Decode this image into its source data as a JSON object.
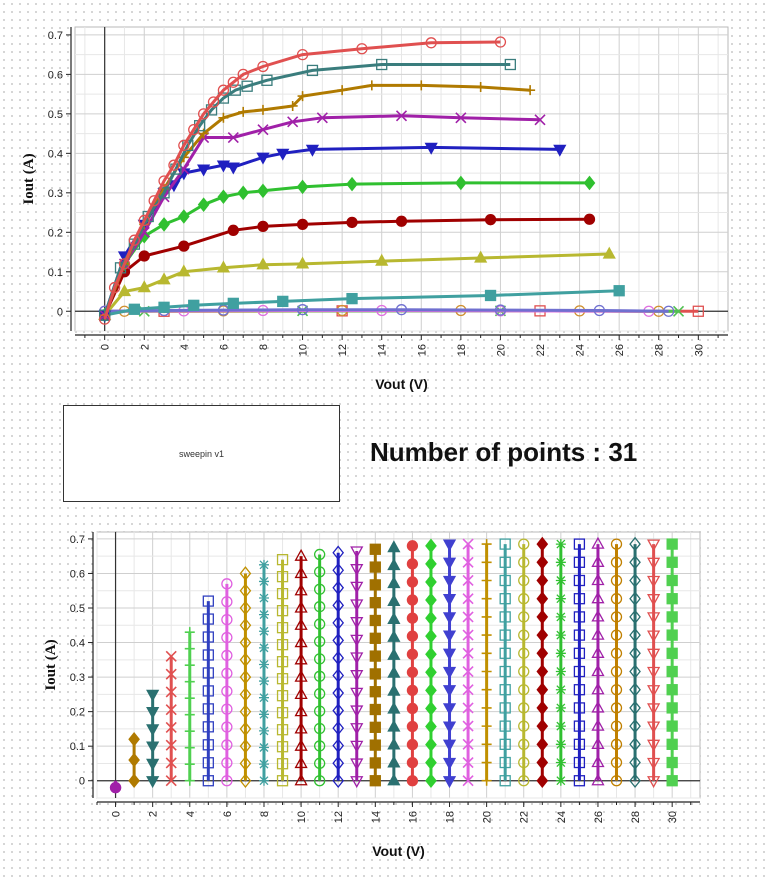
{
  "sweep_box": {
    "label": "sweepin v1"
  },
  "points_readout": "Number of points : 31",
  "chart_data": [
    {
      "type": "line",
      "xlabel": "Vout (V)",
      "ylabel": "Iout (A)",
      "xlim": [
        -1.5,
        31.5
      ],
      "ylim": [
        -0.05,
        0.72
      ],
      "xticks": [
        "0",
        "2",
        "4",
        "6",
        "8",
        "10",
        "12",
        "14",
        "16",
        "18",
        "20",
        "22",
        "24",
        "26",
        "28",
        "30"
      ],
      "yticks": [
        "0",
        "0.1",
        "0.2",
        "0.3",
        "0.4",
        "0.5",
        "0.6",
        "0.7"
      ],
      "grid": true,
      "series": [
        {
          "color": "#e05050",
          "marker": "circle-open",
          "points": [
            [
              0,
              -0.02
            ],
            [
              0.5,
              0.06
            ],
            [
              1,
              0.12
            ],
            [
              1.5,
              0.18
            ],
            [
              2,
              0.23
            ],
            [
              2.5,
              0.28
            ],
            [
              3,
              0.33
            ],
            [
              3.5,
              0.37
            ],
            [
              4,
              0.42
            ],
            [
              4.5,
              0.46
            ],
            [
              5,
              0.5
            ],
            [
              5.5,
              0.53
            ],
            [
              6,
              0.56
            ],
            [
              6.5,
              0.58
            ],
            [
              7,
              0.6
            ],
            [
              8,
              0.62
            ],
            [
              10,
              0.65
            ],
            [
              13,
              0.665
            ],
            [
              16.5,
              0.68
            ],
            [
              20,
              0.682
            ]
          ]
        },
        {
          "color": "#3a7d7d",
          "marker": "square-open",
          "points": [
            [
              0,
              -0.01
            ],
            [
              0.8,
              0.11
            ],
            [
              1.5,
              0.17
            ],
            [
              2.2,
              0.24
            ],
            [
              3,
              0.3
            ],
            [
              3.6,
              0.36
            ],
            [
              4.2,
              0.42
            ],
            [
              4.8,
              0.47
            ],
            [
              5.4,
              0.51
            ],
            [
              6,
              0.54
            ],
            [
              6.6,
              0.56
            ],
            [
              7.2,
              0.57
            ],
            [
              8.2,
              0.585
            ],
            [
              10.5,
              0.61
            ],
            [
              14,
              0.625
            ],
            [
              20.5,
              0.625
            ]
          ]
        },
        {
          "color": "#b07a00",
          "marker": "plus",
          "points": [
            [
              0,
              -0.01
            ],
            [
              1,
              0.12
            ],
            [
              2,
              0.22
            ],
            [
              3,
              0.31
            ],
            [
              4,
              0.39
            ],
            [
              5,
              0.45
            ],
            [
              6,
              0.49
            ],
            [
              7,
              0.505
            ],
            [
              8,
              0.51
            ],
            [
              9.5,
              0.52
            ],
            [
              10,
              0.545
            ],
            [
              12,
              0.56
            ],
            [
              13.5,
              0.572
            ],
            [
              16,
              0.572
            ],
            [
              19,
              0.568
            ],
            [
              21.5,
              0.56
            ]
          ]
        },
        {
          "color": "#a020a8",
          "marker": "x",
          "points": [
            [
              0,
              -0.01
            ],
            [
              1,
              0.12
            ],
            [
              2,
              0.2
            ],
            [
              3,
              0.29
            ],
            [
              4,
              0.36
            ],
            [
              5,
              0.44
            ],
            [
              6.5,
              0.44
            ],
            [
              8,
              0.46
            ],
            [
              9.5,
              0.48
            ],
            [
              11,
              0.49
            ],
            [
              15,
              0.495
            ],
            [
              18,
              0.49
            ],
            [
              22,
              0.485
            ]
          ]
        },
        {
          "color": "#2020c0",
          "marker": "triangle-down",
          "points": [
            [
              0,
              -0.01
            ],
            [
              1,
              0.14
            ],
            [
              2,
              0.22
            ],
            [
              3,
              0.3
            ],
            [
              3.5,
              0.32
            ],
            [
              4,
              0.35
            ],
            [
              5,
              0.36
            ],
            [
              6,
              0.37
            ],
            [
              6.5,
              0.365
            ],
            [
              8,
              0.39
            ],
            [
              9,
              0.4
            ],
            [
              10.5,
              0.41
            ],
            [
              16.5,
              0.415
            ],
            [
              23,
              0.41
            ]
          ]
        },
        {
          "color": "#30c030",
          "marker": "diamond",
          "points": [
            [
              0,
              -0.01
            ],
            [
              1,
              0.12
            ],
            [
              2,
              0.19
            ],
            [
              3,
              0.22
            ],
            [
              4,
              0.24
            ],
            [
              5,
              0.27
            ],
            [
              6,
              0.29
            ],
            [
              7,
              0.3
            ],
            [
              8,
              0.305
            ],
            [
              10,
              0.315
            ],
            [
              12.5,
              0.322
            ],
            [
              18,
              0.325
            ],
            [
              24.5,
              0.325
            ]
          ]
        },
        {
          "color": "#a00000",
          "marker": "circle",
          "points": [
            [
              0,
              -0.01
            ],
            [
              1,
              0.1
            ],
            [
              2,
              0.14
            ],
            [
              4,
              0.165
            ],
            [
              6.5,
              0.205
            ],
            [
              8,
              0.215
            ],
            [
              10,
              0.22
            ],
            [
              12.5,
              0.225
            ],
            [
              15,
              0.228
            ],
            [
              19.5,
              0.232
            ],
            [
              24.5,
              0.233
            ]
          ]
        },
        {
          "color": "#b8b830",
          "marker": "triangle",
          "points": [
            [
              0,
              -0.01
            ],
            [
              1,
              0.05
            ],
            [
              2,
              0.06
            ],
            [
              3,
              0.08
            ],
            [
              4,
              0.1
            ],
            [
              6,
              0.11
            ],
            [
              8,
              0.118
            ],
            [
              10,
              0.12
            ],
            [
              14,
              0.127
            ],
            [
              19,
              0.135
            ],
            [
              25.5,
              0.145
            ]
          ]
        },
        {
          "color": "#40a0a0",
          "marker": "square",
          "points": [
            [
              0,
              -0.01
            ],
            [
              1.5,
              0.005
            ],
            [
              3,
              0.01
            ],
            [
              4.5,
              0.015
            ],
            [
              6.5,
              0.02
            ],
            [
              9,
              0.025
            ],
            [
              12.5,
              0.032
            ],
            [
              19.5,
              0.04
            ],
            [
              26,
              0.052
            ]
          ]
        },
        {
          "color": "#7070d0",
          "marker": "circle-open",
          "points": [
            [
              0,
              0
            ],
            [
              3,
              0.002
            ],
            [
              6,
              0.003
            ],
            [
              10,
              0.004
            ],
            [
              15,
              0.004
            ],
            [
              20,
              0.003
            ],
            [
              25,
              0.002
            ],
            [
              28.5,
              0
            ]
          ]
        },
        {
          "color": "#e070e0",
          "marker": "circle-open",
          "points": [
            [
              0,
              0
            ],
            [
              4,
              0.001
            ],
            [
              8,
              0.002
            ],
            [
              14,
              0.002
            ],
            [
              20,
              0.001
            ],
            [
              27.5,
              0
            ]
          ]
        },
        {
          "color": "#d09030",
          "marker": "circle-open",
          "points": [
            [
              1,
              0
            ],
            [
              6,
              0.001
            ],
            [
              12,
              0.002
            ],
            [
              18,
              0.002
            ],
            [
              24,
              0.001
            ],
            [
              28,
              0
            ]
          ]
        },
        {
          "color": "#50c050",
          "marker": "x",
          "points": [
            [
              2,
              0
            ],
            [
              10,
              0.001
            ],
            [
              20,
              0.001
            ],
            [
              29,
              0
            ]
          ]
        },
        {
          "color": "#e05050",
          "marker": "square-open",
          "points": [
            [
              3,
              0
            ],
            [
              12,
              0.001
            ],
            [
              22,
              0.001
            ],
            [
              30,
              0
            ]
          ]
        }
      ]
    },
    {
      "type": "scatter",
      "xlabel": "Vout (V)",
      "ylabel": "Iout (A)",
      "xlim": [
        -1,
        31.5
      ],
      "ylim": [
        -0.05,
        0.72
      ],
      "xticks": [
        "0",
        "2",
        "4",
        "6",
        "8",
        "10",
        "12",
        "14",
        "16",
        "18",
        "20",
        "22",
        "24",
        "26",
        "28",
        "30"
      ],
      "yticks": [
        "0",
        "0.1",
        "0.2",
        "0.3",
        "0.4",
        "0.5",
        "0.6",
        "0.7"
      ],
      "grid": true,
      "series": [
        {
          "x": 0,
          "ymax": -0.02,
          "color": "#a020a8",
          "marker": "circle"
        },
        {
          "x": 1,
          "ymax": 0.12,
          "color": "#b07a00",
          "marker": "diamond"
        },
        {
          "x": 2,
          "ymax": 0.25,
          "color": "#2a7070",
          "marker": "triangle-down"
        },
        {
          "x": 3,
          "ymax": 0.36,
          "color": "#e05050",
          "marker": "x"
        },
        {
          "x": 4,
          "ymax": 0.43,
          "color": "#50d050",
          "marker": "plus"
        },
        {
          "x": 5,
          "ymax": 0.52,
          "color": "#3040c0",
          "marker": "square-open"
        },
        {
          "x": 6,
          "ymax": 0.57,
          "color": "#e060e0",
          "marker": "circle-open"
        },
        {
          "x": 7,
          "ymax": 0.6,
          "color": "#c09000",
          "marker": "diamond-open"
        },
        {
          "x": 8,
          "ymax": 0.625,
          "color": "#40a0a0",
          "marker": "asterisk"
        },
        {
          "x": 9,
          "ymax": 0.64,
          "color": "#b8b830",
          "marker": "square-open"
        },
        {
          "x": 10,
          "ymax": 0.65,
          "color": "#a00000",
          "marker": "triangle-open"
        },
        {
          "x": 11,
          "ymax": 0.655,
          "color": "#30c030",
          "marker": "circle-open"
        },
        {
          "x": 12,
          "ymax": 0.66,
          "color": "#2020c0",
          "marker": "diamond-open"
        },
        {
          "x": 13,
          "ymax": 0.665,
          "color": "#a020a8",
          "marker": "triangle-down-open"
        },
        {
          "x": 14,
          "ymax": 0.67,
          "color": "#a07000",
          "marker": "square"
        },
        {
          "x": 15,
          "ymax": 0.675,
          "color": "#2a7070",
          "marker": "triangle"
        },
        {
          "x": 16,
          "ymax": 0.68,
          "color": "#e04040",
          "marker": "circle"
        },
        {
          "x": 17,
          "ymax": 0.68,
          "color": "#30d030",
          "marker": "diamond"
        },
        {
          "x": 18,
          "ymax": 0.685,
          "color": "#4040d0",
          "marker": "triangle-down"
        },
        {
          "x": 19,
          "ymax": 0.685,
          "color": "#e060e0",
          "marker": "x"
        },
        {
          "x": 20,
          "ymax": 0.685,
          "color": "#c09000",
          "marker": "plus"
        },
        {
          "x": 21,
          "ymax": 0.685,
          "color": "#40a0a0",
          "marker": "square-open"
        },
        {
          "x": 22,
          "ymax": 0.685,
          "color": "#b8b830",
          "marker": "circle-open"
        },
        {
          "x": 23,
          "ymax": 0.685,
          "color": "#a00000",
          "marker": "diamond"
        },
        {
          "x": 24,
          "ymax": 0.685,
          "color": "#30c030",
          "marker": "asterisk"
        },
        {
          "x": 25,
          "ymax": 0.685,
          "color": "#2020c0",
          "marker": "square-open"
        },
        {
          "x": 26,
          "ymax": 0.685,
          "color": "#a020a8",
          "marker": "triangle-open"
        },
        {
          "x": 27,
          "ymax": 0.685,
          "color": "#c08000",
          "marker": "circle-open"
        },
        {
          "x": 28,
          "ymax": 0.685,
          "color": "#2a7070",
          "marker": "diamond-open"
        },
        {
          "x": 29,
          "ymax": 0.685,
          "color": "#e05050",
          "marker": "triangle-down-open"
        },
        {
          "x": 30,
          "ymax": 0.685,
          "color": "#50d050",
          "marker": "square"
        }
      ]
    }
  ]
}
